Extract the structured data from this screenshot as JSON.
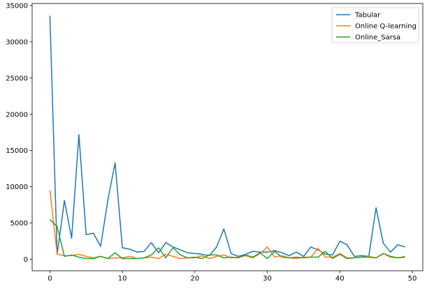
{
  "chart_data": {
    "type": "line",
    "title": "",
    "xlabel": "",
    "ylabel": "",
    "xlim": [
      -2.45,
      51.45
    ],
    "ylim": [
      -1580,
      35280
    ],
    "xticks": [
      0,
      10,
      20,
      30,
      40,
      50
    ],
    "yticks": [
      0,
      5000,
      10000,
      15000,
      20000,
      25000,
      30000,
      35000
    ],
    "grid": false,
    "legend_placement": "top-right",
    "x": [
      0,
      1,
      2,
      3,
      4,
      5,
      6,
      7,
      8,
      9,
      10,
      11,
      12,
      13,
      14,
      15,
      16,
      17,
      18,
      19,
      20,
      21,
      22,
      23,
      24,
      25,
      26,
      27,
      28,
      29,
      30,
      31,
      32,
      33,
      34,
      35,
      36,
      37,
      38,
      39,
      40,
      41,
      42,
      43,
      44,
      45,
      46,
      47,
      48,
      49
    ],
    "series": [
      {
        "name": "Tabular",
        "color": "#1f77b4",
        "values": [
          33600,
          700,
          8100,
          2900,
          17200,
          3400,
          3600,
          1800,
          8200,
          13300,
          1600,
          1400,
          1000,
          1100,
          2300,
          900,
          2300,
          1700,
          1300,
          900,
          800,
          700,
          500,
          1700,
          4200,
          800,
          400,
          700,
          1100,
          1000,
          1000,
          1200,
          900,
          500,
          1000,
          400,
          1700,
          1300,
          700,
          600,
          2500,
          2000,
          400,
          500,
          400,
          7100,
          2200,
          1000,
          2000,
          1700
        ]
      },
      {
        "name": "Online Q-learning",
        "color": "#ff7f0e",
        "values": [
          9500,
          700,
          500,
          500,
          700,
          400,
          200,
          400,
          100,
          200,
          200,
          400,
          100,
          200,
          300,
          100,
          700,
          400,
          100,
          200,
          200,
          500,
          100,
          400,
          600,
          200,
          300,
          500,
          200,
          800,
          1700,
          300,
          500,
          200,
          100,
          300,
          300,
          1500,
          300,
          300,
          800,
          200,
          200,
          300,
          400,
          200,
          800,
          300,
          200,
          400
        ]
      },
      {
        "name": "Online_Sarsa",
        "color": "#2ca02c",
        "values": [
          5500,
          4500,
          400,
          600,
          300,
          100,
          100,
          400,
          100,
          900,
          100,
          100,
          100,
          200,
          600,
          1600,
          200,
          1600,
          600,
          200,
          300,
          100,
          600,
          600,
          200,
          300,
          200,
          600,
          300,
          900,
          100,
          1100,
          300,
          200,
          300,
          200,
          300,
          300,
          1100,
          100,
          700,
          100,
          200,
          300,
          300,
          200,
          800,
          400,
          200,
          300
        ]
      }
    ]
  }
}
